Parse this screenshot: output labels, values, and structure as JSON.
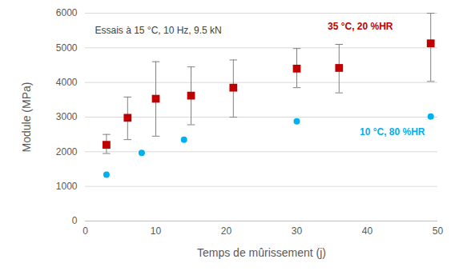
{
  "chart_data": {
    "type": "scatter",
    "x_label": "Temps de mûrissement (j)",
    "y_label": "Module (MPa)",
    "annotations": [
      {
        "text": "Essais à 15 °C, 10 Hz, 9.5 kN"
      }
    ],
    "series": [
      {
        "name": "35 °C, 20 %HR",
        "color": "#c00000",
        "marker": "square",
        "x": [
          3,
          6,
          10,
          15,
          21,
          30,
          36,
          49
        ],
        "values": [
          2200,
          2980,
          3530,
          3620,
          3850,
          4400,
          4420,
          5130
        ],
        "error_low": [
          1950,
          2350,
          2450,
          2780,
          3000,
          3850,
          3700,
          4030
        ],
        "error_high": [
          2500,
          3580,
          4600,
          4450,
          4650,
          4980,
          5100,
          6000
        ]
      },
      {
        "name": "10 °C, 80 %HR",
        "color": "#00b0f0",
        "marker": "circle",
        "x": [
          3,
          8,
          14,
          30,
          49
        ],
        "values": [
          1340,
          1970,
          2350,
          2880,
          3020
        ]
      }
    ],
    "xlim": [
      0,
      50
    ],
    "xticks": [
      0,
      10,
      20,
      30,
      40,
      50
    ],
    "ylim": [
      0,
      6000
    ],
    "yticks": [
      0,
      1000,
      2000,
      3000,
      4000,
      5000,
      6000
    ],
    "grid": "y"
  }
}
